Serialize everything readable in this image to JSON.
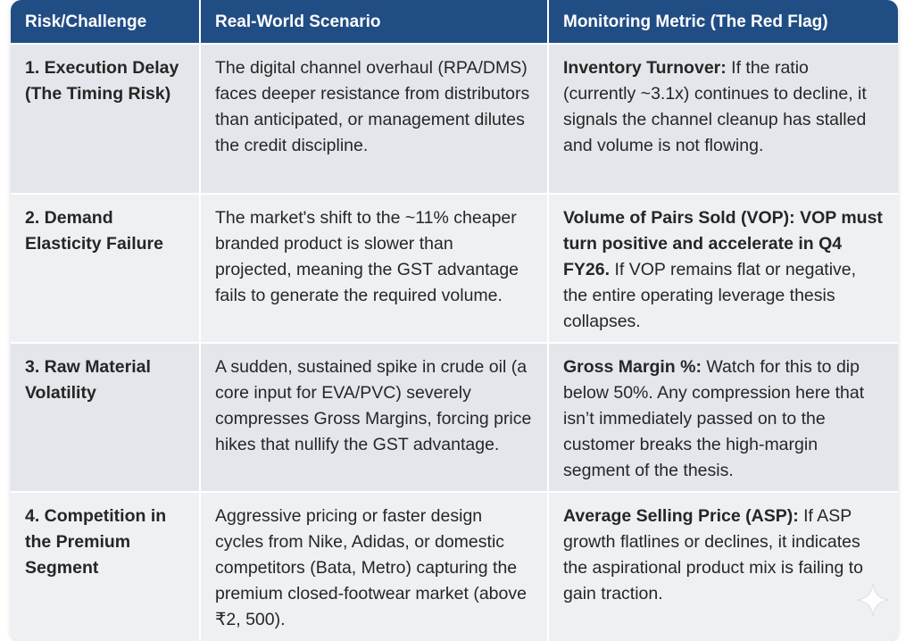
{
  "headers": {
    "risk": "Risk/Challenge",
    "scenario": "Real-World Scenario",
    "metric": "Monitoring Metric (The Red Flag)"
  },
  "rows": [
    {
      "risk": "1. Execution Delay (The Timing Risk)",
      "scenario": "The digital channel overhaul (RPA/DMS) faces deeper resistance from distributors than anticipated, or management dilutes the credit discipline.",
      "metric_label": "Inventory Turnover:",
      "metric_bold": "",
      "metric_text": " If the ratio (currently ~3.1x) continues to decline, it signals the channel cleanup has stalled and volume is not flowing."
    },
    {
      "risk": "2. Demand Elasticity Failure",
      "scenario": "The market's shift to the ~11% cheaper branded product is slower than projected, meaning the GST advantage fails to generate the required volume.",
      "metric_label": "Volume of Pairs Sold (VOP):",
      "metric_bold": " VOP must turn positive and accelerate in Q4 FY26.",
      "metric_text": " If VOP remains flat or negative, the entire operating leverage thesis collapses."
    },
    {
      "risk": "3. Raw Material Volatility",
      "scenario": "A sudden, sustained spike in crude oil (a core input for EVA/PVC) severely compresses Gross Margins, forcing price hikes that nullify the GST advantage.",
      "metric_label": "Gross Margin %:",
      "metric_bold": "",
      "metric_text": " Watch for this to dip below 50%. Any compression here that isn’t immediately passed on to the customer breaks the high-margin segment of the thesis."
    },
    {
      "risk": "4. Competition in the Premium Segment",
      "scenario": "Aggressive pricing or faster design cycles from Nike, Adidas, or domestic competitors (Bata, Metro) capturing the premium closed-footwear market (above ₹2, 500).",
      "metric_label": "Average Selling Price (ASP):",
      "metric_bold": "",
      "metric_text": " If ASP growth flatlines or declines, it indicates the aspirational product mix is failing to gain traction."
    }
  ],
  "colors": {
    "header_bg": "#214d85",
    "row_odd": "#e3e6ea",
    "row_even": "#eef0f3"
  },
  "icons": {
    "corner": "sparkle-icon"
  }
}
